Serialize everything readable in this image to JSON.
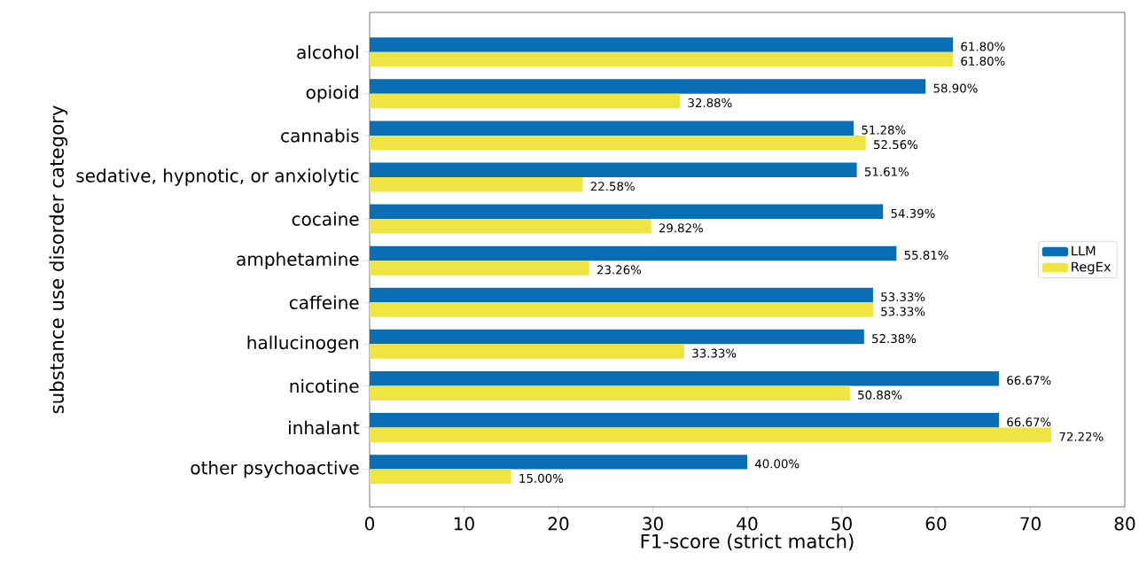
{
  "chart_data": {
    "type": "bar",
    "orientation": "horizontal",
    "xlabel": "F1-score (strict match)",
    "ylabel": "substance use disorder category",
    "categories": [
      "alcohol",
      "opioid",
      "cannabis",
      "sedative, hypnotic, or anxiolytic",
      "cocaine",
      "amphetamine",
      "caffeine",
      "hallucinogen",
      "nicotine",
      "inhalant",
      "other psychoactive"
    ],
    "series": [
      {
        "name": "LLM",
        "color": "#0a6eb4",
        "values": [
          61.8,
          58.9,
          51.28,
          51.61,
          54.39,
          55.81,
          53.33,
          52.38,
          66.67,
          66.67,
          40.0
        ],
        "value_labels": [
          "61.80%",
          "58.90%",
          "51.28%",
          "51.61%",
          "54.39%",
          "55.81%",
          "53.33%",
          "52.38%",
          "66.67%",
          "66.67%",
          "40.00%"
        ]
      },
      {
        "name": "RegEx",
        "color": "#f0e442",
        "values": [
          61.8,
          32.88,
          52.56,
          22.58,
          29.82,
          23.26,
          53.33,
          33.33,
          50.88,
          72.22,
          15.0
        ],
        "value_labels": [
          "61.80%",
          "32.88%",
          "52.56%",
          "22.58%",
          "29.82%",
          "23.26%",
          "53.33%",
          "33.33%",
          "50.88%",
          "72.22%",
          "15.00%"
        ]
      }
    ],
    "xlim": [
      0,
      80
    ],
    "xticks": [
      0,
      10,
      20,
      30,
      40,
      50,
      60,
      70,
      80
    ],
    "grid": false,
    "legend": "right"
  }
}
